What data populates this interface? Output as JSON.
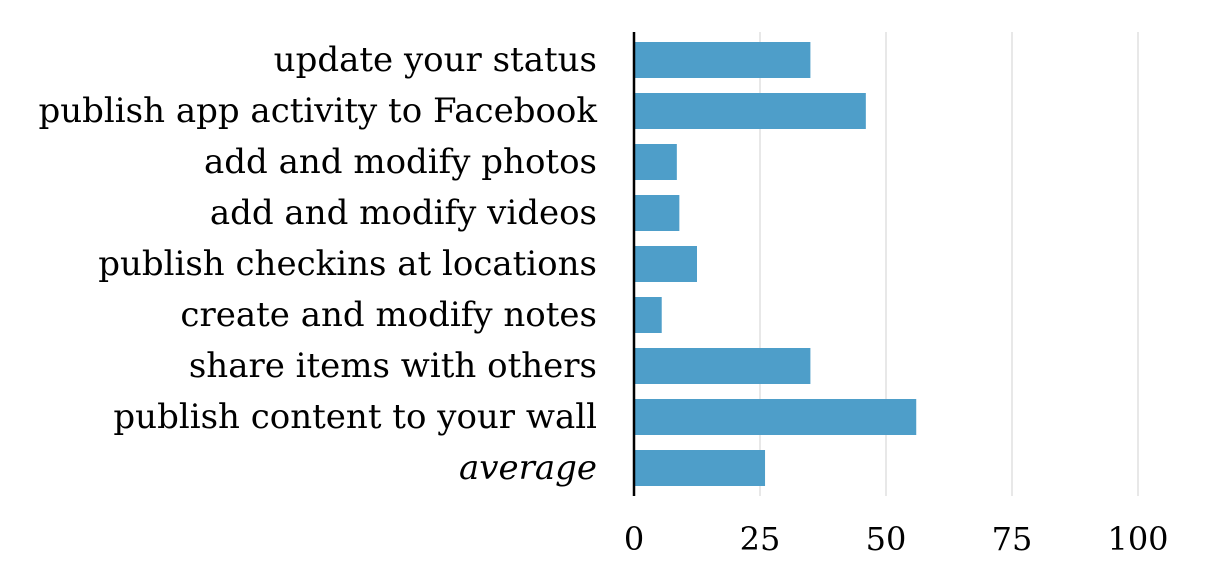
{
  "chart_data": {
    "type": "bar",
    "orientation": "horizontal",
    "categories": [
      "update your status",
      "publish app activity to Facebook",
      "add and modify photos",
      "add and modify videos",
      "publish checkins at locations",
      "create and modify notes",
      "share items with others",
      "publish content to your wall",
      "average"
    ],
    "values": [
      35,
      46,
      8.5,
      9,
      12.5,
      5.5,
      35,
      56,
      26
    ],
    "italic_categories": [
      "average"
    ],
    "xlim": [
      0,
      100
    ],
    "xticks": [
      0,
      25,
      50,
      75,
      100
    ],
    "title": "",
    "xlabel": "",
    "ylabel": "",
    "grid": "vertical",
    "bar_color": "#4e9ec9",
    "grid_color": "#d9d9d9",
    "axis_color": "#000000"
  }
}
